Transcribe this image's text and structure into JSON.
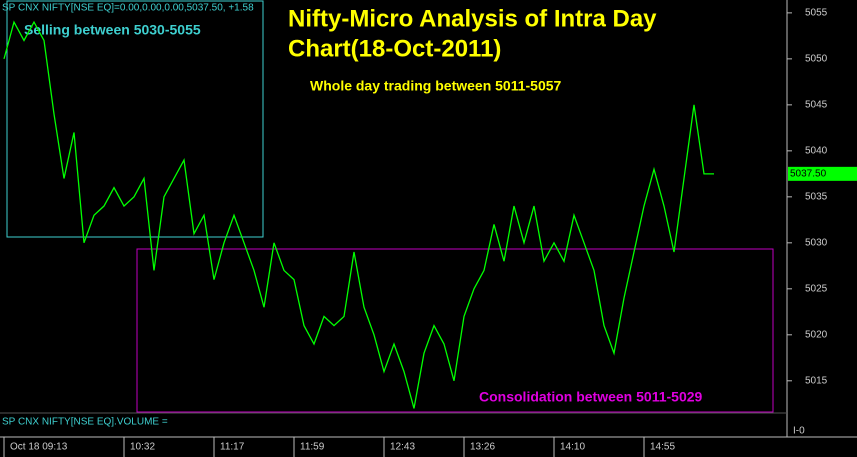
{
  "chart_data": {
    "type": "line",
    "header": "SP CNX NIFTY[NSE EQ]=0.00,0.00,0.00,5037.50,   +1.58",
    "title": [
      "Nifty-Micro Analysis of Intra Day",
      "Chart(18-Oct-2011)"
    ],
    "annotations": [
      "Selling between 5030-5055",
      "Whole day trading between 5011-5057",
      "Consolidation between 5011-5029"
    ],
    "volume_label": "SP CNX NIFTY[NSE EQ].VOLUME =",
    "corner_label": "I-0",
    "last_label": "5037.50",
    "color": "#00ff00",
    "categories": [
      "Oct 18 09:13",
      null,
      null,
      null,
      null,
      null,
      null,
      null,
      null,
      null,
      null,
      null,
      "10:32",
      null,
      null,
      null,
      null,
      null,
      null,
      null,
      null,
      "11:17",
      null,
      null,
      null,
      null,
      null,
      null,
      null,
      "11:59",
      null,
      null,
      null,
      null,
      null,
      null,
      null,
      null,
      "12:43",
      null,
      null,
      null,
      null,
      null,
      null,
      null,
      "13:26",
      null,
      null,
      null,
      null,
      null,
      null,
      null,
      null,
      "14:10",
      null,
      null,
      null,
      null,
      null,
      null,
      null,
      null,
      "14:55",
      null,
      null,
      null,
      null,
      null,
      null,
      null
    ],
    "values": [
      5050,
      5054,
      5052,
      5054,
      5052,
      5044,
      5037,
      5042,
      5030,
      5033,
      5034,
      5036,
      5034,
      5035,
      5037,
      5027,
      5035,
      5037,
      5039,
      5031,
      5033,
      5026,
      5030,
      5033,
      5030,
      5027,
      5023,
      5030,
      5027,
      5026,
      5021,
      5019,
      5022,
      5021,
      5022,
      5029,
      5023,
      5020,
      5016,
      5019,
      5016,
      5012,
      5018,
      5021,
      5019,
      5015,
      5022,
      5025,
      5027,
      5032,
      5028,
      5034,
      5030,
      5034,
      5028,
      5030,
      5028,
      5033,
      5030,
      5027,
      5021,
      5018,
      5024,
      5029,
      5034,
      5038,
      5034,
      5029,
      5037,
      5045,
      5037.5,
      5037.5
    ],
    "ylim": [
      5011.5,
      5056.4
    ],
    "yticks": [
      5015,
      5020,
      5025,
      5030,
      5035,
      5040,
      5045,
      5050,
      5055
    ]
  }
}
